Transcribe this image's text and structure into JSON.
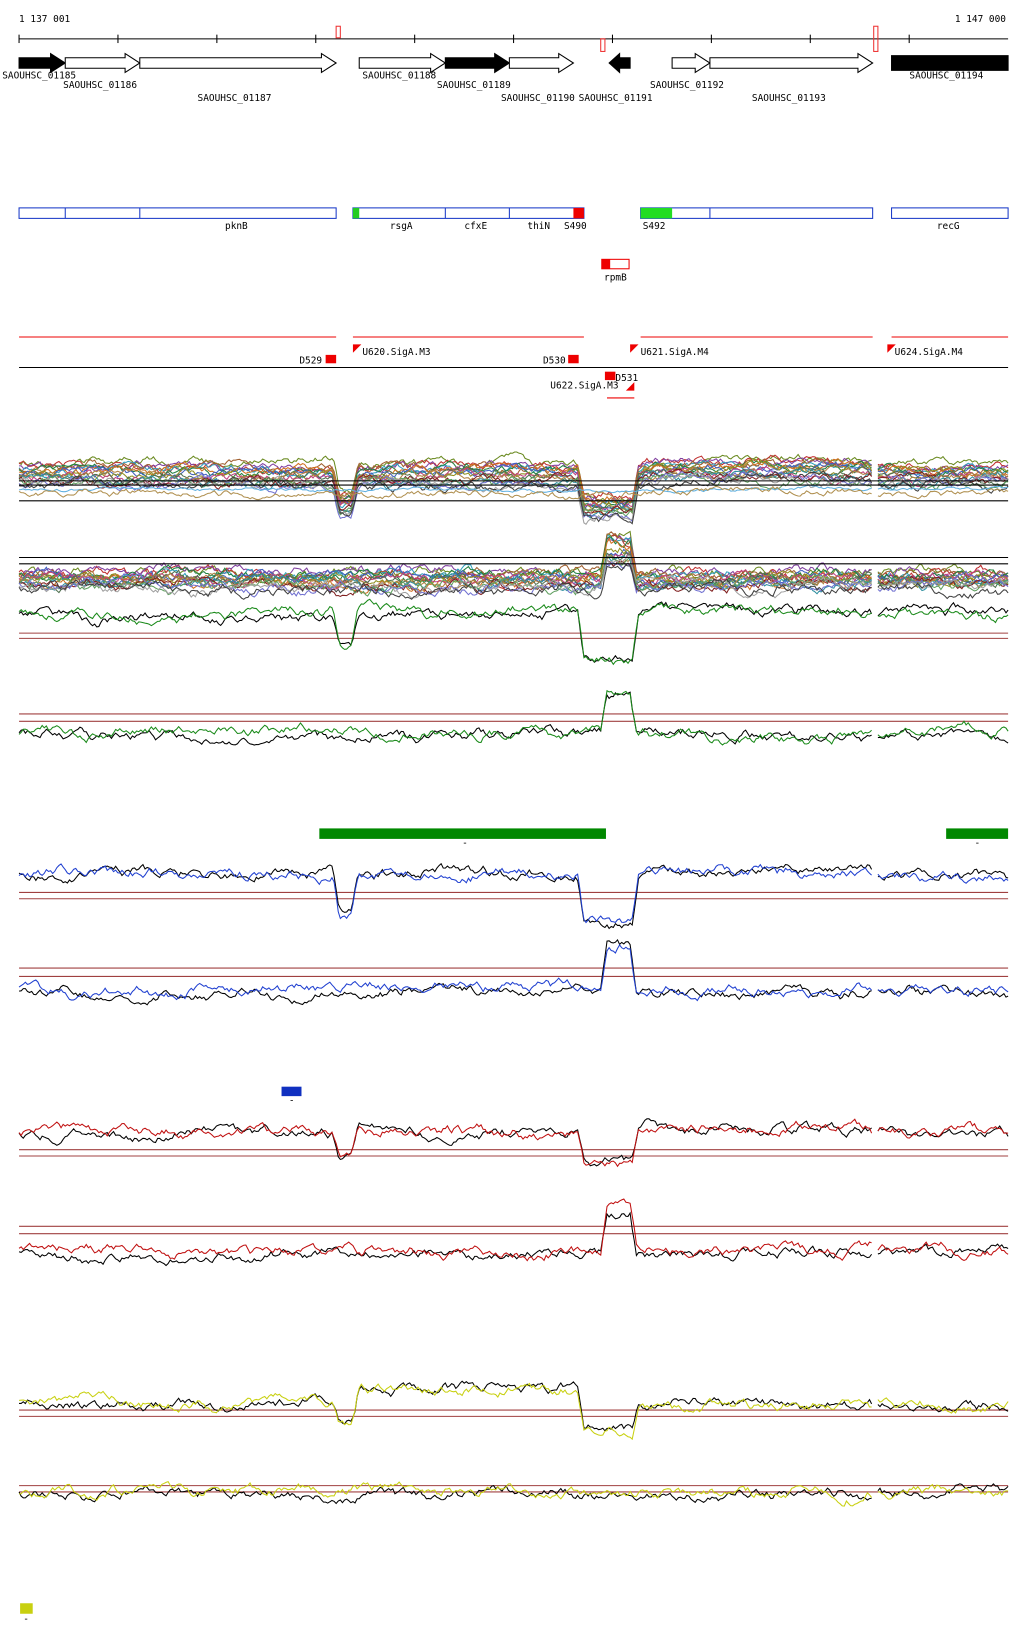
{
  "header": {
    "start": "1 137 001",
    "end": "1 147 000"
  },
  "genes": [
    "SAOUHSC_01185",
    "SAOUHSC_01186",
    "SAOUHSC_01187",
    "SAOUHSC_01188",
    "SAOUHSC_01189",
    "SAOUHSC_01190",
    "SAOUHSC_01191",
    "SAOUHSC_01192",
    "SAOUHSC_01193",
    "SAOUHSC_01194"
  ],
  "operons": [
    "pknB",
    "rsgA",
    "cfxE",
    "thiN",
    "S490",
    "S492",
    "recG",
    "rpmB"
  ],
  "promoters": [
    "D529",
    "U620.SigA.M3",
    "D530",
    "U621.SigA.M4",
    "D531",
    "U622.SigA.M3",
    "U624.SigA.M4"
  ],
  "legends": [
    "-",
    "-",
    "-",
    "-"
  ]
}
